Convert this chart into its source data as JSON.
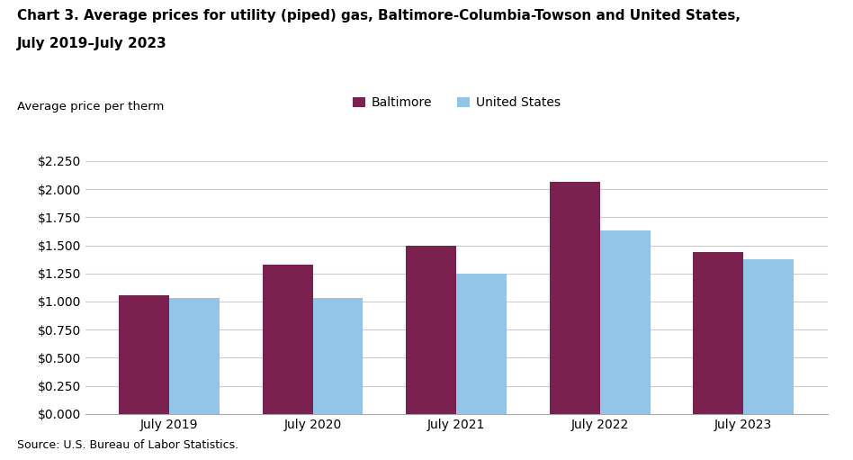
{
  "title_line1": "Chart 3. Average prices for utility (piped) gas, Baltimore-Columbia-Towson and United States,",
  "title_line2": "July 2019–July 2023",
  "ylabel": "Average price per therm",
  "source": "Source: U.S. Bureau of Labor Statistics.",
  "categories": [
    "July 2019",
    "July 2020",
    "July 2021",
    "July 2022",
    "July 2023"
  ],
  "baltimore": [
    1.053,
    1.332,
    1.499,
    2.068,
    1.437
  ],
  "us": [
    1.03,
    1.03,
    1.248,
    1.632,
    1.374
  ],
  "baltimore_color": "#7B2150",
  "us_color": "#92C5E8",
  "bar_width": 0.35,
  "ylim": [
    0,
    2.25
  ],
  "yticks": [
    0.0,
    0.25,
    0.5,
    0.75,
    1.0,
    1.25,
    1.5,
    1.75,
    2.0,
    2.25
  ],
  "legend_labels": [
    "Baltimore",
    "United States"
  ],
  "title_fontsize": 11,
  "axis_fontsize": 9.5,
  "tick_fontsize": 10,
  "legend_fontsize": 10,
  "source_fontsize": 9,
  "background_color": "#ffffff"
}
